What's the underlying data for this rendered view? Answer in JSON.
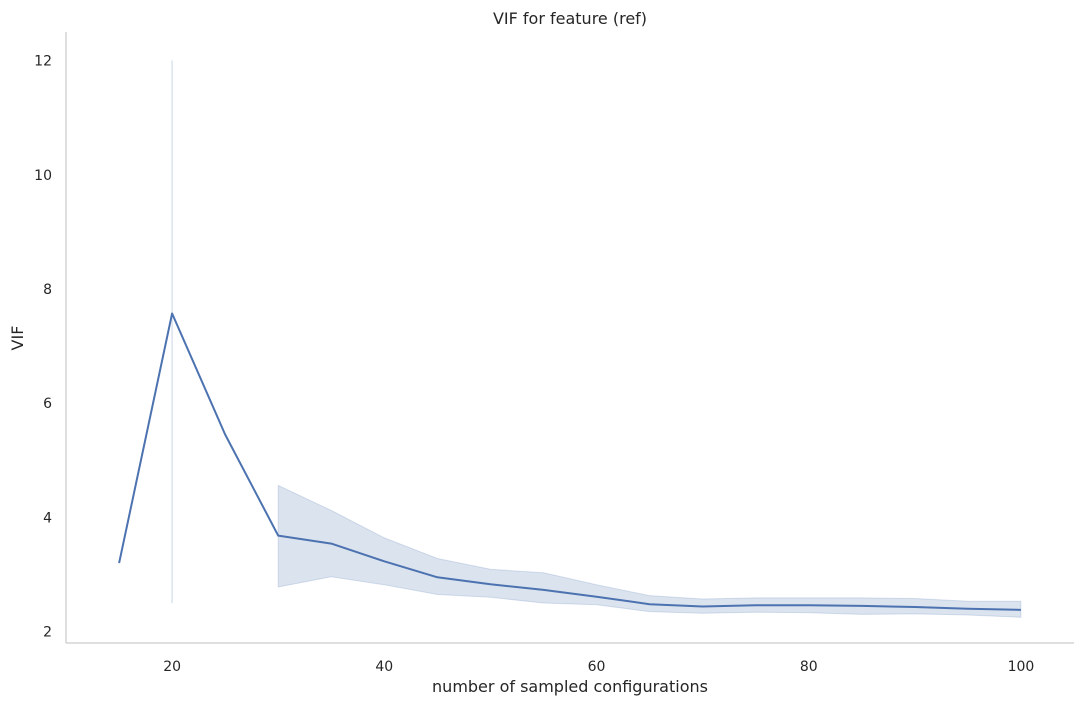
{
  "chart_data": {
    "type": "line",
    "title": "VIF for feature (ref)",
    "xlabel": "number of sampled configurations",
    "ylabel": "VIF",
    "xlim": [
      10,
      105
    ],
    "ylim": [
      1.8,
      12.5
    ],
    "xticks": [
      20,
      40,
      60,
      80,
      100
    ],
    "yticks": [
      2,
      4,
      6,
      8,
      10,
      12
    ],
    "grid": false,
    "legend": "none",
    "colors": {
      "line": "#4c72b0",
      "band": "#4c72b0"
    },
    "x": [
      15,
      20,
      25,
      30,
      35,
      40,
      45,
      50,
      55,
      60,
      65,
      70,
      75,
      80,
      85,
      90,
      95,
      100
    ],
    "series": [
      {
        "values": [
          3.2,
          7.57,
          5.45,
          3.68,
          3.54,
          3.23,
          2.95,
          2.83,
          2.73,
          2.61,
          2.48,
          2.44,
          2.46,
          2.46,
          2.45,
          2.43,
          2.4,
          2.38
        ],
        "ci_lower": [
          3.2,
          2.5,
          5.45,
          2.78,
          2.96,
          2.82,
          2.65,
          2.6,
          2.5,
          2.47,
          2.35,
          2.32,
          2.34,
          2.33,
          2.3,
          2.31,
          2.29,
          2.25
        ],
        "ci_upper": [
          3.2,
          12.0,
          5.45,
          4.56,
          4.12,
          3.64,
          3.28,
          3.09,
          3.03,
          2.82,
          2.63,
          2.57,
          2.59,
          2.59,
          2.59,
          2.58,
          2.53,
          2.53
        ]
      }
    ]
  }
}
